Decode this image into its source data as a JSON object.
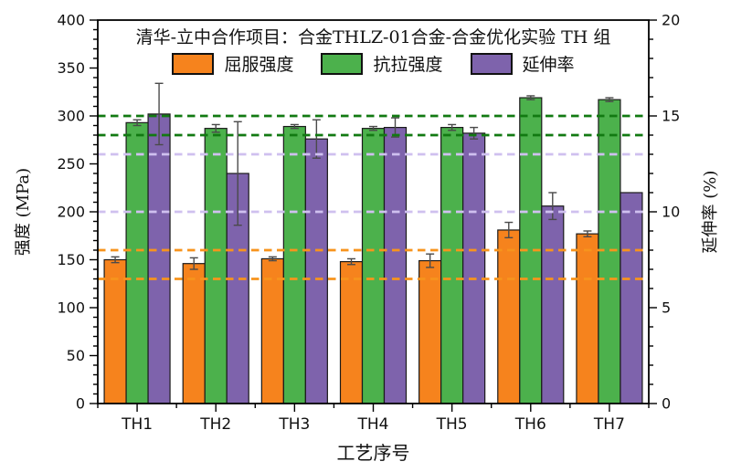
{
  "figure": {
    "background": "#ffffff"
  },
  "chart_data": {
    "type": "bar",
    "title": "清华-立中合作项目：合金THLZ-01合金-合金优化实验 TH 组",
    "xlabel": "工艺序号",
    "ylabel_left": "强度 (MPa)",
    "ylabel_right": "延伸率 (%)",
    "categories": [
      "TH1",
      "TH2",
      "TH3",
      "TH4",
      "TH5",
      "TH6",
      "TH7"
    ],
    "axes": {
      "left": {
        "min": 0,
        "max": 400,
        "major_tick": 50,
        "minor_tick": 10,
        "tick_labels": [
          "0",
          "50",
          "100",
          "150",
          "200",
          "250",
          "300",
          "350",
          "400"
        ]
      },
      "right": {
        "min": 0,
        "max": 20,
        "major_tick": 5,
        "minor_tick": 1,
        "tick_labels": [
          "0",
          "5",
          "10",
          "15",
          "20"
        ]
      }
    },
    "grid": false,
    "legend_position": "top-inside",
    "series": [
      {
        "name": "屈服强度",
        "axis": "left",
        "color": "#F6831D",
        "values": [
          150,
          146,
          151,
          148,
          149,
          181,
          177
        ],
        "errors": [
          3,
          6,
          2,
          3,
          7,
          8,
          3
        ]
      },
      {
        "name": "抗拉强度",
        "axis": "left",
        "color": "#4CB14C",
        "values": [
          293,
          287,
          289,
          287,
          288,
          319,
          317
        ],
        "errors": [
          3,
          4,
          2,
          2,
          3,
          2,
          2
        ]
      },
      {
        "name": "延伸率",
        "axis": "right",
        "color": "#7E63AC",
        "values": [
          15.1,
          12.0,
          13.8,
          14.4,
          14.1,
          10.3,
          11.0
        ],
        "errors": [
          1.6,
          2.7,
          1.0,
          0.5,
          0.3,
          0.7,
          0
        ]
      }
    ],
    "reference_lines": [
      {
        "axis": "left",
        "value": 300,
        "color": "#127A12"
      },
      {
        "axis": "left",
        "value": 280,
        "color": "#127A12"
      },
      {
        "axis": "left",
        "value": 260,
        "color": "#CFC0EF"
      },
      {
        "axis": "left",
        "value": 200,
        "color": "#CFC0EF"
      },
      {
        "axis": "left",
        "value": 160,
        "color": "#F7941D"
      },
      {
        "axis": "left",
        "value": 130,
        "color": "#F7941D"
      }
    ]
  }
}
